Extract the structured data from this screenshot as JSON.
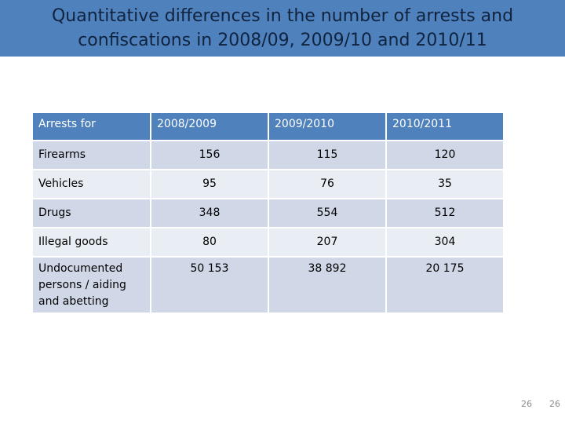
{
  "title": "Quantitative differences in the number of arrests and confiscations in 2008/09, 2009/10 and 2010/11",
  "table": {
    "headers": [
      "Arrests for",
      "2008/2009",
      "2009/2010",
      "2010/2011"
    ],
    "rows": [
      [
        "Firearms",
        "156",
        "115",
        "120"
      ],
      [
        "Vehicles",
        "95",
        "76",
        "35"
      ],
      [
        "Drugs",
        "348",
        "554",
        "512"
      ],
      [
        "Illegal goods",
        "80",
        "207",
        "304"
      ],
      [
        "Undocumented persons / aiding and abetting",
        "50 153",
        "38 892",
        "20 175"
      ]
    ]
  },
  "page_numbers": [
    "26",
    "26"
  ]
}
